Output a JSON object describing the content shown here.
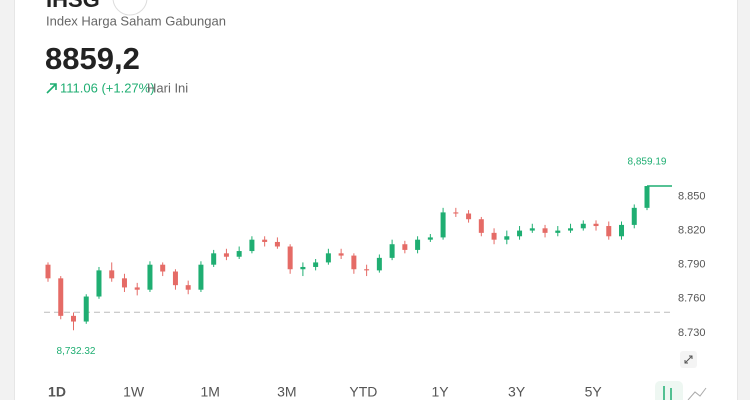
{
  "header": {
    "ticker": "IHSG",
    "subtitle": "Index Harga Saham Gabungan",
    "price": "8859,2",
    "change": "111.06 (+1.27%)",
    "period": "Hari Ini"
  },
  "chart_data": {
    "type": "candlestick",
    "series": [
      {
        "up_color": "#1fae72",
        "down_color": "#e56b66",
        "open": [
          8790,
          8778,
          8745,
          8740,
          8762,
          8785,
          8778,
          8770,
          8768,
          8790,
          8784,
          8772,
          8768,
          8790,
          8800,
          8797,
          8802,
          8812,
          8810,
          8806,
          8786,
          8788,
          8792,
          8800,
          8798,
          8786,
          8785,
          8796,
          8808,
          8803,
          8812,
          8814,
          8836,
          8835,
          8830,
          8818,
          8812,
          8815,
          8820,
          8822,
          8818,
          8820,
          8822,
          8826,
          8824,
          8815,
          8825,
          8840
        ],
        "high": [
          8792,
          8780,
          8748,
          8764,
          8788,
          8792,
          8782,
          8774,
          8793,
          8792,
          8786,
          8776,
          8793,
          8803,
          8804,
          8806,
          8815,
          8815,
          8814,
          8808,
          8792,
          8795,
          8804,
          8804,
          8800,
          8790,
          8799,
          8812,
          8811,
          8815,
          8817,
          8840,
          8840,
          8838,
          8832,
          8822,
          8820,
          8824,
          8826,
          8825,
          8824,
          8826,
          8829,
          8829,
          8828,
          8828,
          8843,
          8859.19
        ],
        "low": [
          8775,
          8742,
          8732.32,
          8738,
          8760,
          8775,
          8766,
          8763,
          8766,
          8780,
          8768,
          8764,
          8766,
          8788,
          8794,
          8795,
          8800,
          8806,
          8804,
          8782,
          8780,
          8785,
          8790,
          8795,
          8782,
          8780,
          8783,
          8794,
          8800,
          8800,
          8810,
          8812,
          8832,
          8827,
          8815,
          8808,
          8808,
          8812,
          8818,
          8814,
          8815,
          8818,
          8820,
          8820,
          8812,
          8812,
          8822,
          8838
        ],
        "close": [
          8778,
          8745,
          8740,
          8762,
          8785,
          8778,
          8770,
          8768,
          8790,
          8784,
          8772,
          8768,
          8790,
          8800,
          8797,
          8802,
          8812,
          8810,
          8806,
          8786,
          8788,
          8792,
          8800,
          8798,
          8786,
          8785,
          8796,
          8808,
          8803,
          8812,
          8814,
          8836,
          8835,
          8830,
          8818,
          8812,
          8815,
          8820,
          8822,
          8818,
          8820,
          8822,
          8826,
          8824,
          8815,
          8825,
          8840,
          8859.19
        ]
      }
    ],
    "ylim": [
      8722,
      8890
    ],
    "yticks": [
      {
        "value": 8730,
        "label": "8.730"
      },
      {
        "value": 8760,
        "label": "8.760"
      },
      {
        "value": 8790,
        "label": "8.790"
      },
      {
        "value": 8820,
        "label": "8.820"
      },
      {
        "value": 8850,
        "label": "8.850"
      }
    ],
    "reference_line": 8748.14,
    "annotations": [
      {
        "value": 8859.19,
        "label": "8,859.19"
      },
      {
        "value": 8732.32,
        "label": "8,732.32"
      }
    ],
    "annotation_color": "#1fae72"
  },
  "tabs": [
    "1D",
    "1W",
    "1M",
    "3M",
    "YTD",
    "1Y",
    "3Y",
    "5Y"
  ],
  "active_tab": 0
}
